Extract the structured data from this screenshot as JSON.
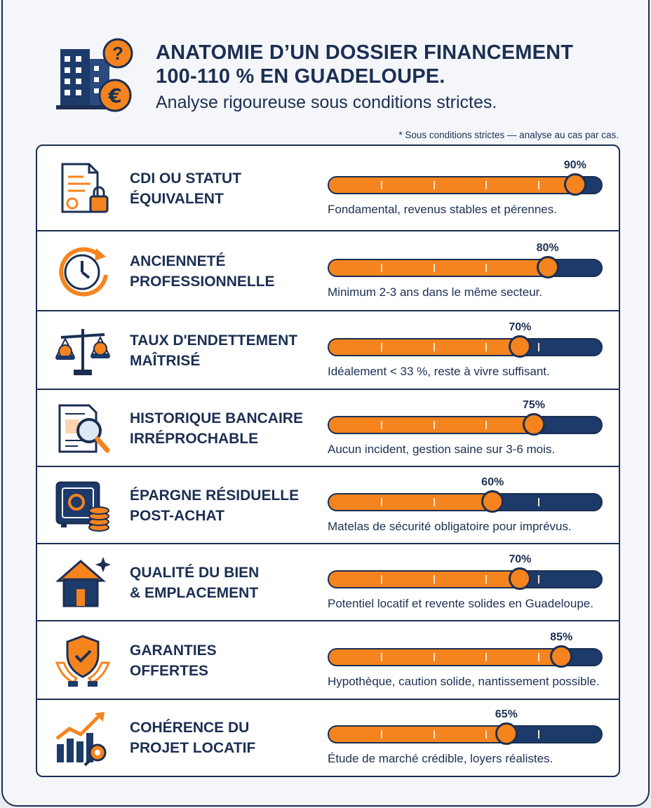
{
  "header": {
    "title_line1": "ANATOMIE D’UN DOSSIER FINANCEMENT",
    "title_line2": "100-110 % EN GUADELOUPE.",
    "subtitle": "Analyse rigoureuse sous conditions strictes.",
    "note": "* Sous conditions strictes — analyse au cas par cas.",
    "icon": "building-euro-question-icon"
  },
  "colors": {
    "navy": "#1c2f52",
    "orange": "#f5841f",
    "bar_track": "#1c3a6a",
    "background": "#f4f6fa"
  },
  "criteria": [
    {
      "label_line1": "CDI OU STATUT",
      "label_line2": "ÉQUIVALENT",
      "value": 90,
      "percent": "90%",
      "description": "Fondamental, revenus stables et pérennes.",
      "icon": "contract-lock-icon"
    },
    {
      "label_line1": "ANCIENNETÉ",
      "label_line2": "PROFESSIONNELLE",
      "value": 80,
      "percent": "80%",
      "description": "Minimum 2-3 ans dans le même secteur.",
      "icon": "clock-icon"
    },
    {
      "label_line1": "TAUX D'ENDETTEMENT",
      "label_line2": "MAÎTRISÉ",
      "value": 70,
      "percent": "70%",
      "description": "Idéalement < 33 %, reste à vivre suffisant.",
      "icon": "balance-scale-icon"
    },
    {
      "label_line1": "HISTORIQUE BANCAIRE",
      "label_line2": "IRRÉPROCHABLE",
      "value": 75,
      "percent": "75%",
      "description": "Aucun incident, gestion saine sur 3-6 mois.",
      "icon": "statement-magnifier-icon"
    },
    {
      "label_line1": "ÉPARGNE RÉSIDUELLE",
      "label_line2": "POST-ACHAT",
      "value": 60,
      "percent": "60%",
      "description": "Matelas de sécurité obligatoire pour imprévus.",
      "icon": "safe-coins-icon"
    },
    {
      "label_line1": "QUALITÉ DU BIEN",
      "label_line2": "& EMPLACEMENT",
      "value": 70,
      "percent": "70%",
      "description": "Potentiel locatif et revente solides en Guadeloupe.",
      "icon": "house-sparkle-icon"
    },
    {
      "label_line1": "GARANTIES",
      "label_line2": "OFFERTES",
      "value": 85,
      "percent": "85%",
      "description": "Hypothèque, caution solide, nantissement possible.",
      "icon": "shield-hands-icon"
    },
    {
      "label_line1": "COHÉRENCE DU",
      "label_line2": "PROJET LOCATIF",
      "value": 65,
      "percent": "65%",
      "description": "Étude de marché crédible, loyers réalistes.",
      "icon": "growth-chart-key-icon"
    }
  ]
}
